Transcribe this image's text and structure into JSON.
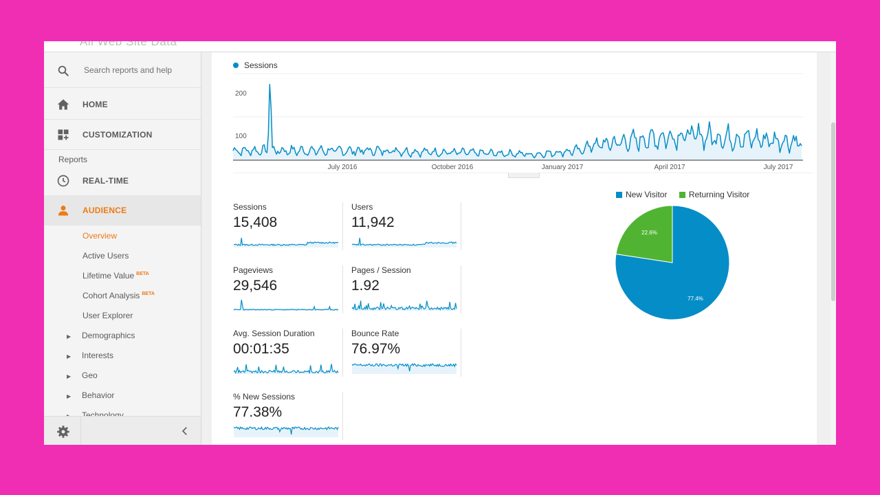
{
  "header": {
    "faded_title": "All Web Site Data"
  },
  "sidebar": {
    "search_placeholder": "Search reports and help",
    "home": "HOME",
    "customization": "CUSTOMIZATION",
    "reports_label": "Reports",
    "realtime": "REAL-TIME",
    "audience": "AUDIENCE",
    "audience_items": [
      {
        "label": "Overview"
      },
      {
        "label": "Active Users"
      },
      {
        "label": "Lifetime Value",
        "badge": "BETA"
      },
      {
        "label": "Cohort Analysis",
        "badge": "BETA"
      },
      {
        "label": "User Explorer"
      }
    ],
    "tree_items": [
      "Demographics",
      "Interests",
      "Geo",
      "Behavior",
      "Technology"
    ]
  },
  "main_chart": {
    "legend": "Sessions",
    "color": "#058dc7",
    "y_ticks": [
      "200",
      "100"
    ],
    "x_ticks": [
      "July 2016",
      "October 2016",
      "January 2017",
      "April 2017",
      "July 2017"
    ],
    "ylim": [
      0,
      200
    ]
  },
  "metrics": [
    {
      "title": "Sessions",
      "value": "15,408"
    },
    {
      "title": "Users",
      "value": "11,942"
    },
    {
      "title": "Pageviews",
      "value": "29,546"
    },
    {
      "title": "Pages / Session",
      "value": "1.92"
    },
    {
      "title": "Avg. Session Duration",
      "value": "00:01:35"
    },
    {
      "title": "Bounce Rate",
      "value": "76.97%"
    },
    {
      "title": "% New Sessions",
      "value": "77.38%"
    }
  ],
  "chart_data": {
    "type": "pie",
    "slices": [
      {
        "name": "New Visitor",
        "value": 77.4,
        "label": "77.4%",
        "color": "#058dc7"
      },
      {
        "name": "Returning Visitor",
        "value": 22.6,
        "label": "22.6%",
        "color": "#50b432"
      }
    ]
  }
}
